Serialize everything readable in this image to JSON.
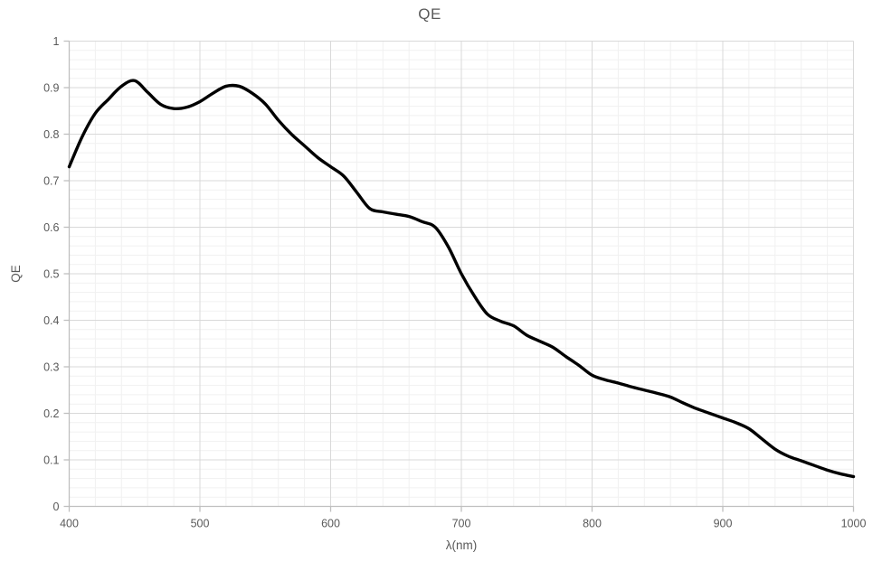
{
  "chart": {
    "title": "QE",
    "x_axis_label": "λ(nm)",
    "y_axis_label": "QE"
  },
  "colors": {
    "background": "#ffffff",
    "line": "#000000",
    "grid_major": "#d9d9d9",
    "grid_minor": "#f1f1f1",
    "axis_line": "#bfbfbf",
    "text": "#595959"
  },
  "chart_data": {
    "type": "line",
    "title": "QE",
    "xlabel": "λ(nm)",
    "ylabel": "QE",
    "xlim": [
      400,
      1000
    ],
    "ylim": [
      0,
      1
    ],
    "grid": {
      "major": true,
      "minor": true
    },
    "legend_position": "none",
    "x_major_ticks": [
      400,
      500,
      600,
      700,
      800,
      900,
      1000
    ],
    "x_tick_labels": [
      "400",
      "500",
      "600",
      "700",
      "800",
      "900",
      "1000"
    ],
    "y_major_ticks": [
      0,
      0.1,
      0.2,
      0.3,
      0.4,
      0.5,
      0.6,
      0.7,
      0.8,
      0.9,
      1
    ],
    "y_tick_labels": [
      "0",
      "0.1",
      "0.2",
      "0.3",
      "0.4",
      "0.5",
      "0.6",
      "0.7",
      "0.8",
      "0.9",
      "1"
    ],
    "x_minor_step": 20,
    "y_minor_step": 0.02,
    "series": [
      {
        "name": "QE",
        "color": "#000000",
        "x": [
          400,
          410,
          420,
          430,
          440,
          450,
          460,
          470,
          480,
          490,
          500,
          510,
          520,
          530,
          540,
          550,
          560,
          570,
          580,
          590,
          600,
          610,
          620,
          630,
          640,
          650,
          660,
          670,
          680,
          690,
          700,
          710,
          720,
          730,
          740,
          750,
          760,
          770,
          780,
          790,
          800,
          810,
          820,
          830,
          840,
          850,
          860,
          870,
          880,
          890,
          900,
          910,
          920,
          930,
          940,
          950,
          960,
          970,
          980,
          990,
          1000
        ],
        "y": [
          0.73,
          0.795,
          0.845,
          0.875,
          0.903,
          0.915,
          0.89,
          0.864,
          0.855,
          0.858,
          0.87,
          0.888,
          0.903,
          0.903,
          0.888,
          0.865,
          0.83,
          0.8,
          0.775,
          0.75,
          0.73,
          0.71,
          0.675,
          0.64,
          0.633,
          0.628,
          0.623,
          0.612,
          0.6,
          0.558,
          0.5,
          0.452,
          0.413,
          0.398,
          0.388,
          0.368,
          0.355,
          0.342,
          0.322,
          0.303,
          0.282,
          0.272,
          0.265,
          0.257,
          0.25,
          0.243,
          0.235,
          0.222,
          0.21,
          0.2,
          0.19,
          0.18,
          0.167,
          0.145,
          0.123,
          0.108,
          0.098,
          0.088,
          0.078,
          0.07,
          0.064
        ]
      }
    ]
  }
}
